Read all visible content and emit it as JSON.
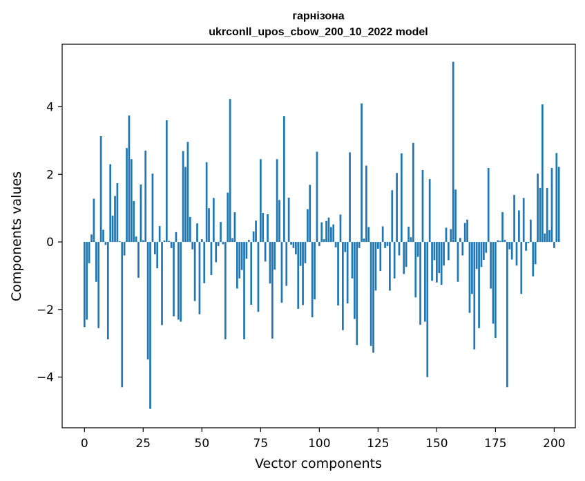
{
  "chart_data": {
    "type": "bar",
    "title": "гарнізона",
    "subtitle": "ukrconll_upos_cbow_200_10_2022 model",
    "xlabel": "Vector components",
    "ylabel": "Components values",
    "xlim": [
      -9.5,
      209
    ],
    "ylim": [
      -5.5,
      5.85
    ],
    "xticks": [
      0,
      25,
      50,
      75,
      100,
      125,
      150,
      175,
      200
    ],
    "yticks": [
      -4,
      -2,
      0,
      2,
      4
    ],
    "ytick_labels": [
      "−4",
      "−2",
      "0",
      "2",
      "4"
    ],
    "grid": false,
    "color": "#1f77b4",
    "values": [
      -2.52,
      -2.3,
      -0.63,
      0.22,
      1.28,
      -1.18,
      -2.55,
      3.13,
      0.36,
      -0.09,
      -2.88,
      2.3,
      0.78,
      1.36,
      1.74,
      0.02,
      -4.3,
      -0.4,
      2.78,
      3.74,
      2.45,
      1.21,
      0.16,
      -1.06,
      1.7,
      0.05,
      2.7,
      -3.48,
      -4.94,
      2.02,
      -0.37,
      -0.78,
      0.47,
      -2.46,
      0.04,
      3.6,
      0.03,
      -0.18,
      -2.2,
      0.29,
      -2.3,
      -2.36,
      2.69,
      2.22,
      2.96,
      0.74,
      -0.22,
      -1.75,
      0.55,
      -2.14,
      0.08,
      -1.22,
      2.36,
      1.0,
      -0.98,
      1.3,
      -0.6,
      -0.12,
      0.59,
      -0.07,
      -2.88,
      1.46,
      4.23,
      0.11,
      0.88,
      -1.38,
      -1.08,
      -0.83,
      -2.88,
      -0.5,
      0.06,
      -1.86,
      0.31,
      0.63,
      -2.07,
      2.45,
      0.86,
      -0.58,
      0.82,
      -1.23,
      -2.86,
      -0.82,
      2.45,
      1.24,
      -1.8,
      3.72,
      -1.3,
      1.31,
      -0.08,
      -0.18,
      -0.37,
      -1.98,
      -0.71,
      -1.87,
      -0.63,
      0.97,
      1.69,
      -2.23,
      -1.7,
      2.67,
      -0.12,
      0.58,
      0.08,
      0.62,
      0.72,
      0.44,
      0.52,
      -0.16,
      -1.88,
      0.81,
      -2.61,
      -0.3,
      -1.82,
      2.65,
      -1.08,
      -2.28,
      -3.05,
      -0.18,
      4.1,
      0.1,
      2.26,
      0.44,
      -3.08,
      -3.28,
      -1.44,
      -0.2,
      -0.86,
      0.46,
      -0.18,
      -0.12,
      -1.44,
      1.53,
      -1.08,
      2.04,
      -0.4,
      2.62,
      -0.95,
      -0.74,
      0.45,
      0.14,
      2.93,
      -1.64,
      -0.44,
      -2.45,
      2.13,
      -2.36,
      -4.0,
      1.86,
      -1.15,
      -0.54,
      -1.2,
      -0.92,
      -1.27,
      -0.7,
      0.42,
      -0.54,
      0.38,
      5.33,
      1.55,
      -1.18,
      0.12,
      -0.4,
      0.56,
      0.66,
      -2.1,
      -1.54,
      -3.18,
      -0.8,
      -2.55,
      -0.74,
      -0.53,
      -0.32,
      2.19,
      -1.38,
      -2.42,
      -2.84,
      0.05,
      0.03,
      0.88,
      0.06,
      -4.3,
      -0.22,
      -0.52,
      1.39,
      -0.7,
      0.93,
      -1.54,
      1.3,
      -0.26,
      -0.04,
      0.66,
      -1.02,
      -0.66,
      2.02,
      1.6,
      4.07,
      0.25,
      1.6,
      0.35,
      2.19,
      -0.18,
      2.63,
      2.22
    ]
  }
}
